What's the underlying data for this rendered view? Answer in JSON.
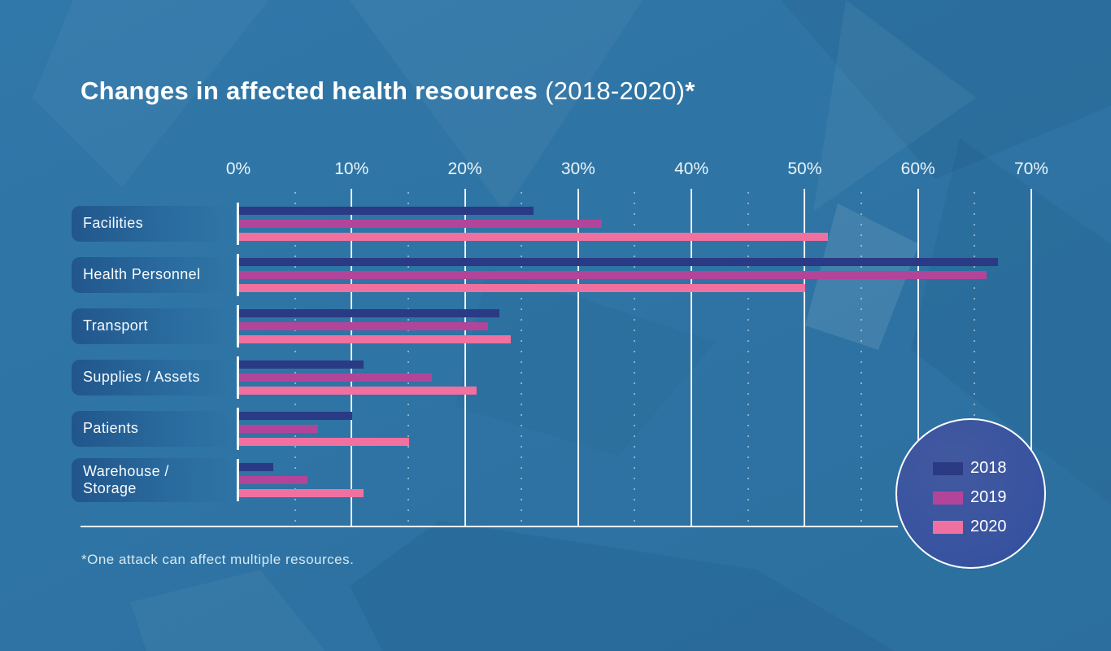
{
  "title": {
    "bold": "Changes in affected health resources",
    "light": "(2018-2020)",
    "star": "*"
  },
  "footnote": "*One attack can affect multiple resources.",
  "colors": {
    "background": "#2e74a4",
    "bar_2018": "#2b3a84",
    "bar_2019": "#b2459a",
    "bar_2020": "#f0709f",
    "gridline": "#ffffff",
    "legend_circle_fill": "#3a54a0"
  },
  "chart_data": {
    "type": "bar",
    "orientation": "horizontal",
    "title": "Changes in affected health resources (2018-2020)*",
    "categories": [
      "Facilities",
      "Health Personnel",
      "Transport",
      "Supplies / Assets",
      "Patients",
      "Warehouse / Storage"
    ],
    "series": [
      {
        "name": "2018",
        "color": "#2b3a84",
        "values": [
          26,
          67,
          23,
          11,
          10,
          3
        ]
      },
      {
        "name": "2019",
        "color": "#b2459a",
        "values": [
          32,
          66,
          22,
          17,
          7,
          6
        ]
      },
      {
        "name": "2020",
        "color": "#f0709f",
        "values": [
          52,
          50,
          24,
          21,
          15,
          11
        ]
      }
    ],
    "x_ticks": [
      "0%",
      "10%",
      "20%",
      "30%",
      "40%",
      "50%",
      "60%",
      "70%"
    ],
    "xlim": [
      0,
      70
    ],
    "xlabel": "",
    "ylabel": "",
    "grid": "solid white vertical lines every 10%, dotted white lines every 5%",
    "legend_position": "bottom-right circle badge"
  },
  "legend": {
    "items": [
      {
        "label": "2018",
        "color": "#2b3a84"
      },
      {
        "label": "2019",
        "color": "#b2459a"
      },
      {
        "label": "2020",
        "color": "#f0709f"
      }
    ]
  }
}
